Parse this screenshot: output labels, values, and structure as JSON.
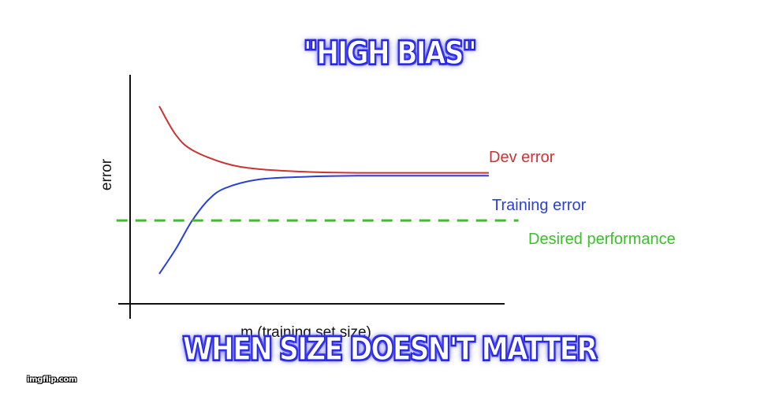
{
  "caption": {
    "top": "\"HIGH BIAS\"",
    "bottom": "WHEN SIZE DOESN'T MATTER"
  },
  "watermark": "imgflip.com",
  "chart_data": {
    "type": "line",
    "ylabel": "error",
    "xlabel": "m (training set size)",
    "grid": false,
    "series": [
      {
        "name": "Dev error",
        "color": "#cc3333",
        "x": [
          0.0,
          0.05,
          0.1,
          0.2,
          0.3,
          0.45,
          0.6,
          0.8,
          1.0
        ],
        "y": [
          0.93,
          0.78,
          0.7,
          0.63,
          0.6,
          0.585,
          0.58,
          0.58,
          0.58
        ]
      },
      {
        "name": "Training error",
        "color": "#2a3fd6",
        "x": [
          0.0,
          0.05,
          0.1,
          0.15,
          0.2,
          0.3,
          0.45,
          0.6,
          0.8,
          1.0
        ],
        "y": [
          0.05,
          0.18,
          0.33,
          0.44,
          0.5,
          0.545,
          0.56,
          0.565,
          0.565,
          0.565
        ]
      },
      {
        "name": "Desired performance",
        "color": "#3cbf2a",
        "style": "dashed",
        "x": [
          -0.13,
          1.09
        ],
        "y": [
          0.33,
          0.33
        ]
      }
    ]
  }
}
